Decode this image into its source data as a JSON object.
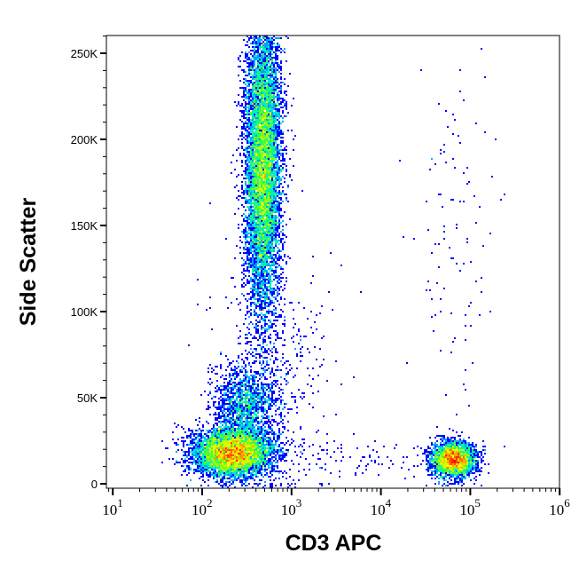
{
  "chart_data": {
    "type": "heatmap",
    "subtype": "flow-cytometry density dot plot",
    "xlabel": "CD3 APC",
    "ylabel": "Side Scatter",
    "x_scale": "log",
    "xlim": [
      8.5,
      1000000
    ],
    "ylim": [
      -3000,
      262000
    ],
    "x_ticks": [
      {
        "base": "10",
        "exp": "1",
        "value": 10
      },
      {
        "base": "10",
        "exp": "2",
        "value": 100
      },
      {
        "base": "10",
        "exp": "3",
        "value": 1000
      },
      {
        "base": "10",
        "exp": "4",
        "value": 10000
      },
      {
        "base": "10",
        "exp": "5",
        "value": 100000
      },
      {
        "base": "10",
        "exp": "6",
        "value": 1000000
      }
    ],
    "y_ticks": [
      {
        "label": "0",
        "value": 0
      },
      {
        "label": "50K",
        "value": 50000
      },
      {
        "label": "100K",
        "value": 100000
      },
      {
        "label": "150K",
        "value": 150000
      },
      {
        "label": "200K",
        "value": 200000
      },
      {
        "label": "250K",
        "value": 250000
      }
    ],
    "colormap": [
      "#0000ff",
      "#0080ff",
      "#00e0ff",
      "#00ff80",
      "#80ff00",
      "#ffff00",
      "#ff8000",
      "#ff0000"
    ],
    "grid": false,
    "populations": [
      {
        "center_x": 220,
        "sd_log_x": 0.22,
        "center_y": 18000,
        "sd_y": 7000,
        "n": 6000
      },
      {
        "center_x": 480,
        "sd_log_x": 0.1,
        "center_y": 185000,
        "sd_y": 45000,
        "n": 9000
      },
      {
        "center_x": 300,
        "sd_log_x": 0.18,
        "center_y": 45000,
        "sd_y": 12000,
        "n": 1500
      },
      {
        "center_x": 65000,
        "sd_log_x": 0.12,
        "center_y": 14000,
        "sd_y": 5000,
        "n": 3000
      },
      {
        "center_x": 63000,
        "sd_log_x": 0.2,
        "center_y": 140000,
        "sd_y": 70000,
        "n": 120
      },
      {
        "center_x": 630,
        "sd_log_x": 0.35,
        "center_y": 60000,
        "sd_y": 35000,
        "n": 400
      },
      {
        "center_x": 3200,
        "sd_log_x": 0.5,
        "center_y": 15000,
        "sd_y": 6000,
        "n": 100
      }
    ]
  }
}
